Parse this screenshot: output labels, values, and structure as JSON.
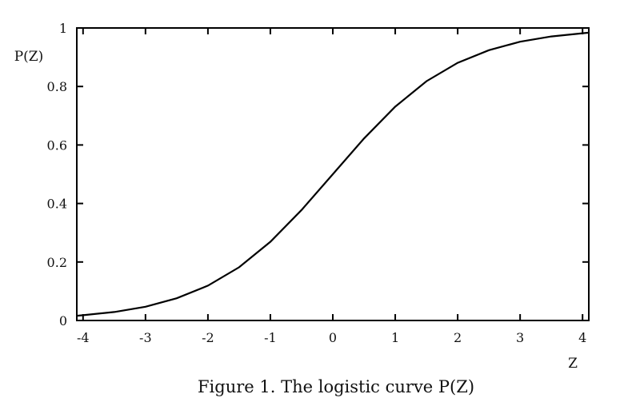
{
  "chart_data": {
    "type": "line",
    "title": "",
    "xlabel": "Z",
    "ylabel": "P(Z)",
    "xlim": [
      -4.1,
      4.1
    ],
    "ylim": [
      0,
      1
    ],
    "x_ticks": [
      -4,
      -3,
      -2,
      -1,
      0,
      1,
      2,
      3,
      4
    ],
    "x_tick_labels": [
      "-4",
      "-3",
      "-2",
      "-1",
      "0",
      "1",
      "2",
      "3",
      "4"
    ],
    "y_ticks": [
      0,
      0.2,
      0.4,
      0.6,
      0.8,
      1
    ],
    "y_tick_labels": [
      "0",
      "0.2",
      "0.4",
      "0.6",
      "0.8",
      "1"
    ],
    "grid": false,
    "series": [
      {
        "x": [
          -4.1,
          -4,
          -3.5,
          -3,
          -2.5,
          -2,
          -1.5,
          -1,
          -0.5,
          0,
          0.5,
          1,
          1.5,
          2,
          2.5,
          3,
          3.5,
          4,
          4.1
        ],
        "y": [
          0.016,
          0.018,
          0.029,
          0.047,
          0.076,
          0.119,
          0.182,
          0.269,
          0.378,
          0.5,
          0.622,
          0.731,
          0.818,
          0.881,
          0.924,
          0.953,
          0.971,
          0.982,
          0.984
        ]
      }
    ]
  },
  "caption": "Figure 1.  The logistic curve P(Z)"
}
